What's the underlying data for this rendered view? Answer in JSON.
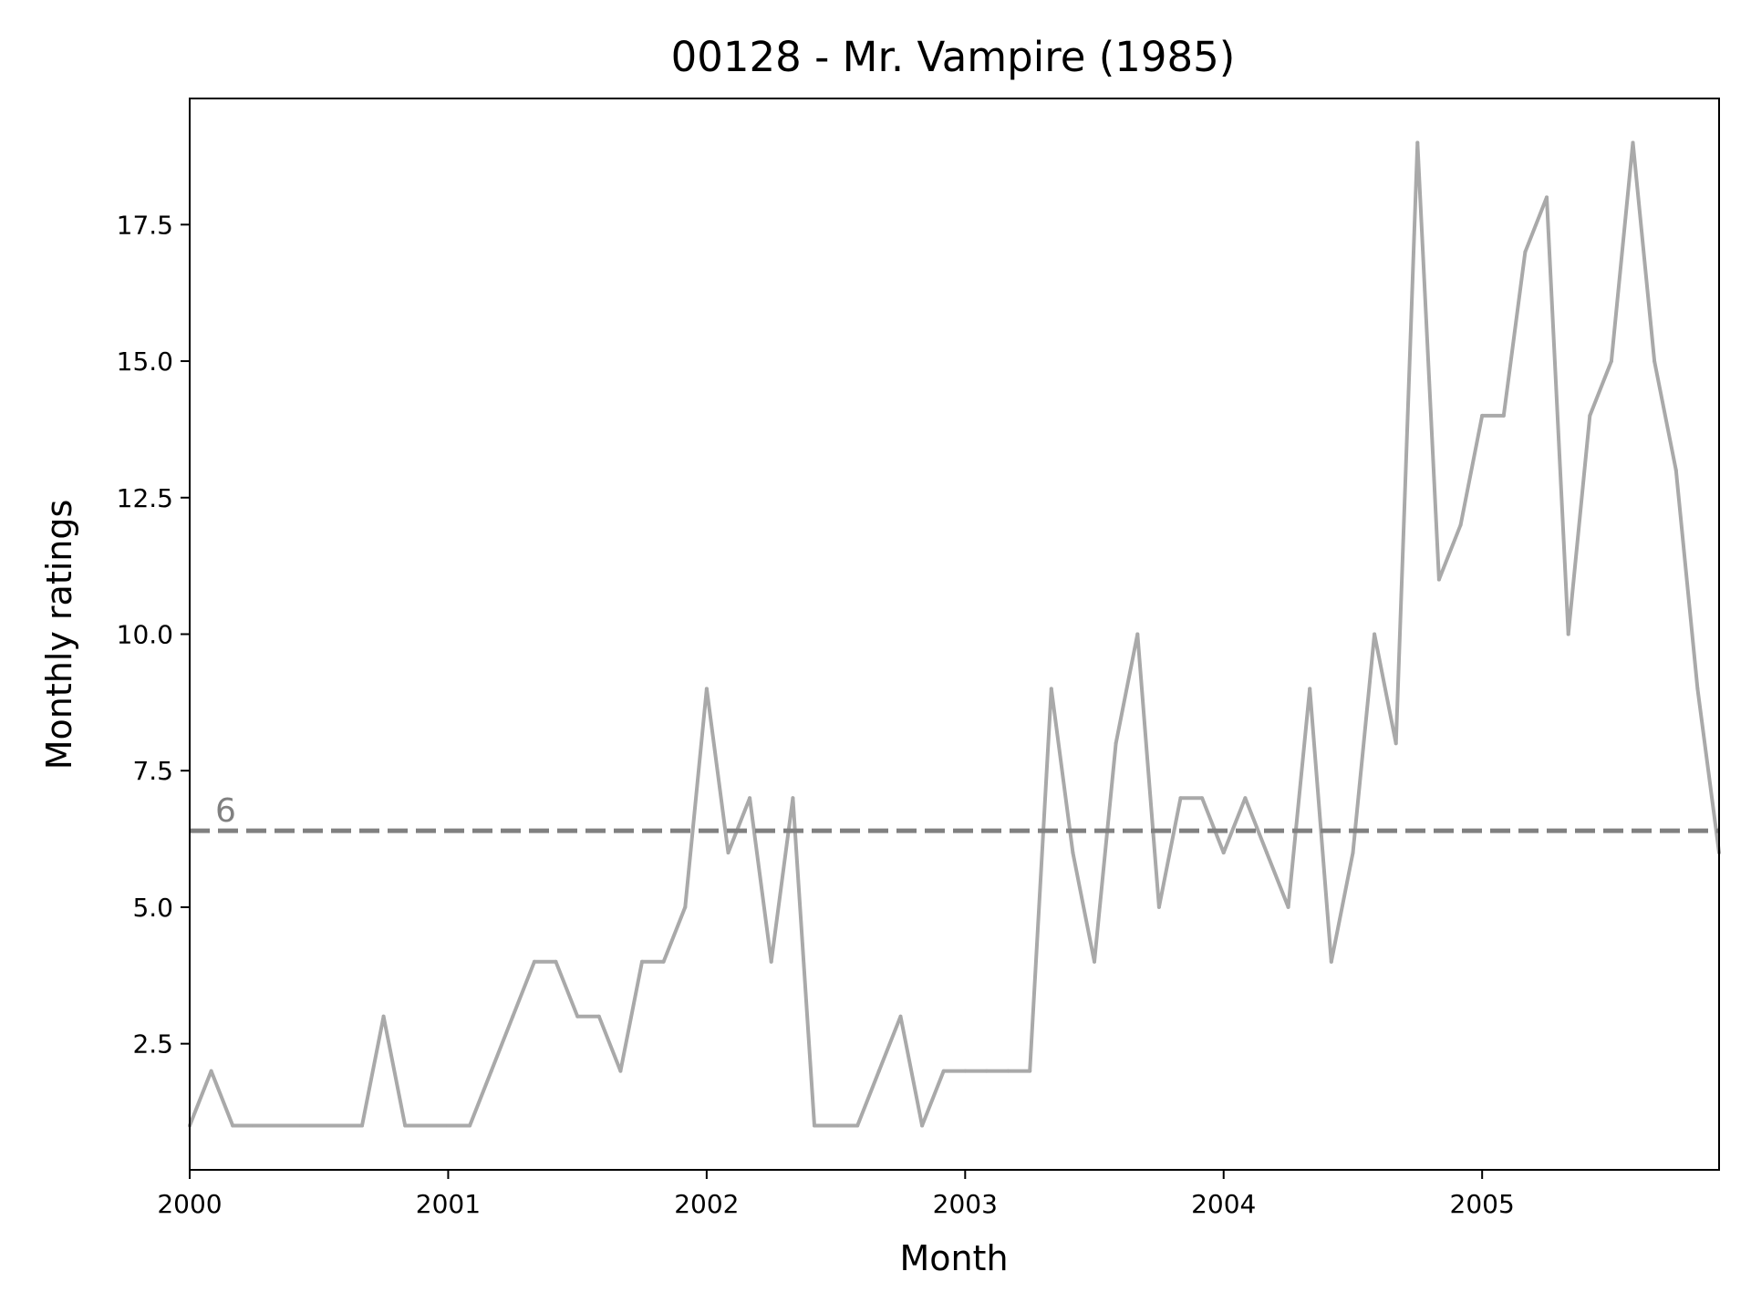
{
  "chart_data": {
    "type": "line",
    "title": "00128 - Mr. Vampire (1985)",
    "xlabel": "Month",
    "ylabel": "Monthly ratings",
    "x_start": "2000-01",
    "x_end": "2005-12",
    "xlim": [
      "2000-01",
      "2005-12"
    ],
    "ylim": [
      0.19,
      19.81
    ],
    "x_ticks": [
      "2000",
      "2001",
      "2002",
      "2003",
      "2004",
      "2005"
    ],
    "y_ticks": [
      "2.5",
      "5.0",
      "7.5",
      "10.0",
      "12.5",
      "15.0",
      "17.5"
    ],
    "grid": false,
    "legend": "none",
    "series": [
      {
        "color": "#a9a9a9",
        "x": [
          "2000-01",
          "2000-02",
          "2000-03",
          "2000-04",
          "2000-05",
          "2000-06",
          "2000-07",
          "2000-08",
          "2000-09",
          "2000-10",
          "2000-11",
          "2000-12",
          "2001-01",
          "2001-02",
          "2001-03",
          "2001-04",
          "2001-05",
          "2001-06",
          "2001-07",
          "2001-08",
          "2001-09",
          "2001-10",
          "2001-11",
          "2001-12",
          "2002-01",
          "2002-02",
          "2002-03",
          "2002-04",
          "2002-05",
          "2002-06",
          "2002-07",
          "2002-08",
          "2002-09",
          "2002-10",
          "2002-11",
          "2002-12",
          "2003-01",
          "2003-02",
          "2003-03",
          "2003-04",
          "2003-05",
          "2003-06",
          "2003-07",
          "2003-08",
          "2003-09",
          "2003-10",
          "2003-11",
          "2003-12",
          "2004-01",
          "2004-02",
          "2004-03",
          "2004-04",
          "2004-05",
          "2004-06",
          "2004-07",
          "2004-08",
          "2004-09",
          "2004-10",
          "2004-11",
          "2004-12",
          "2005-01",
          "2005-02",
          "2005-03",
          "2005-04",
          "2005-05",
          "2005-06",
          "2005-07",
          "2005-08",
          "2005-09",
          "2005-10",
          "2005-11",
          "2005-12"
        ],
        "values": [
          1,
          2,
          1,
          1,
          1,
          1,
          1,
          1,
          1,
          3,
          1,
          1,
          1,
          1,
          2,
          3,
          4,
          4,
          3,
          3,
          2,
          4,
          4,
          5,
          9,
          6,
          7,
          4,
          7,
          1,
          1,
          1,
          2,
          3,
          1,
          2,
          2,
          2,
          2,
          2,
          9,
          6,
          4,
          8,
          10,
          5,
          7,
          7,
          6,
          7,
          6,
          5,
          9,
          4,
          6,
          10,
          8,
          19,
          11,
          12,
          14,
          14,
          17,
          18,
          10,
          14,
          15,
          19,
          15,
          13,
          9,
          6
        ]
      }
    ],
    "reference_line": {
      "y": 6.4,
      "label": "6",
      "color": "#808080",
      "style": "dashed"
    }
  }
}
